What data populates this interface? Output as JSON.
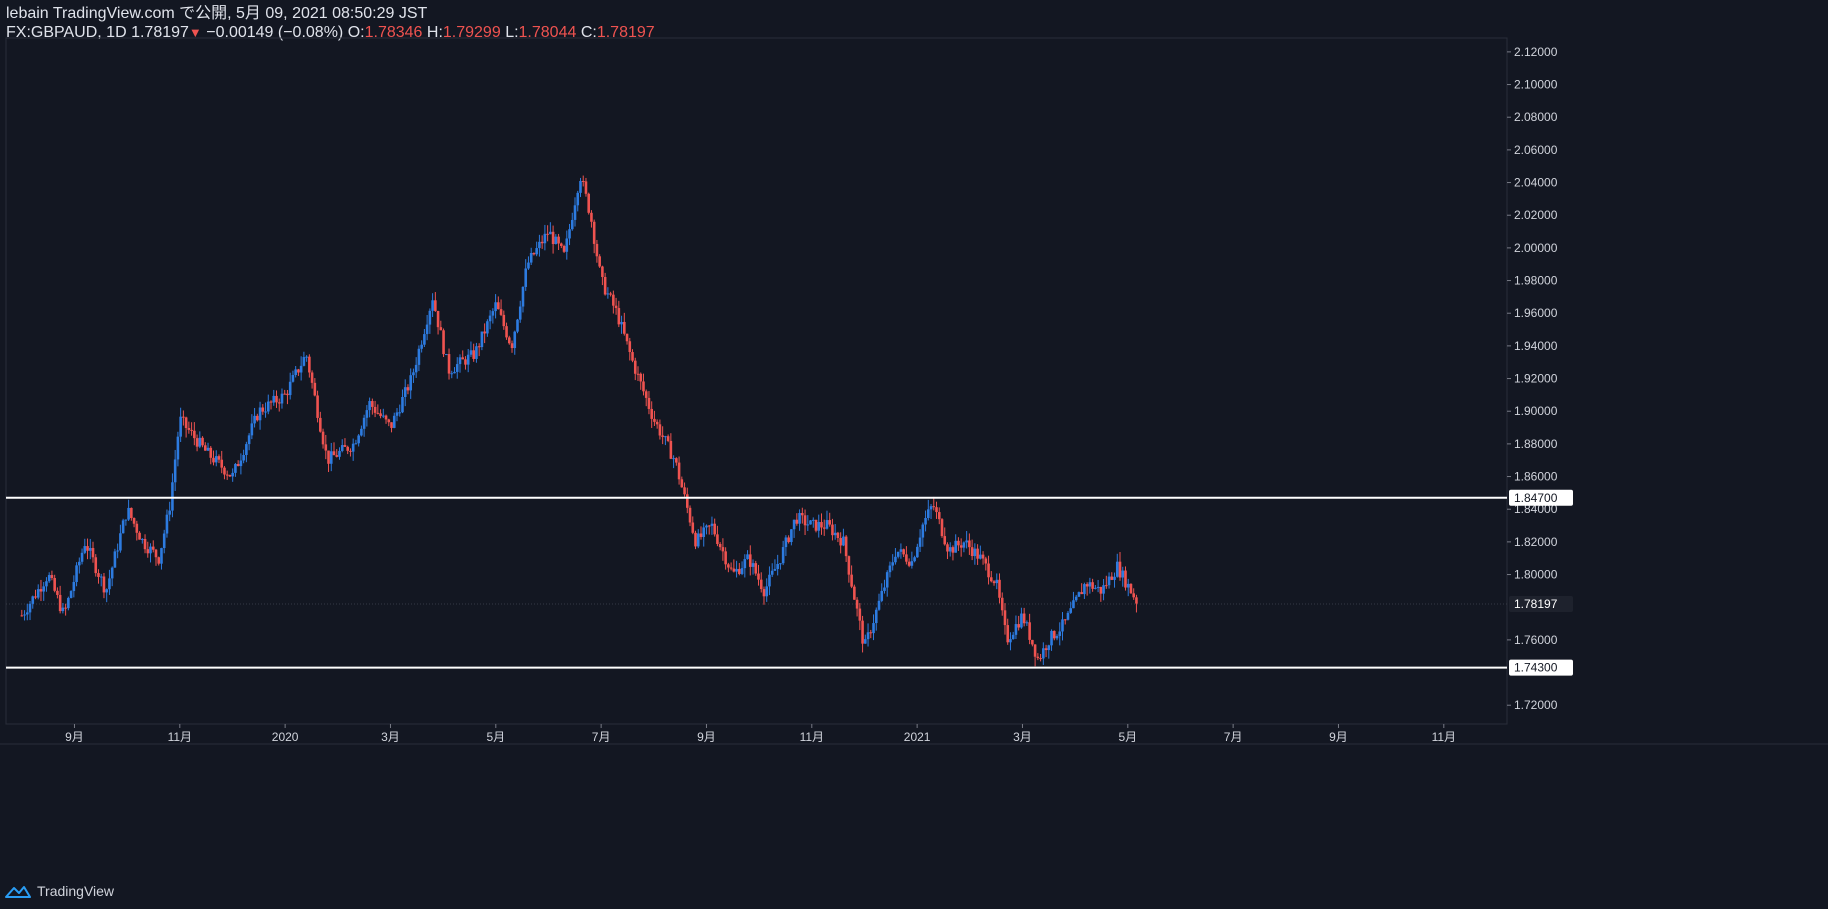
{
  "header": {
    "publisher_line": "lebain TradingView.com で公開, 5月 09, 2021 08:50:29 JST",
    "symbol": "FX:GBPAUD, 1D",
    "last": "1.78197",
    "change": "−0.00149 (−0.08%)",
    "o_label": "O:",
    "o_value": "1.78346",
    "h_label": "H:",
    "h_value": "1.79299",
    "l_label": "L:",
    "l_value": "1.78044",
    "c_label": "C:",
    "c_value": "1.78197"
  },
  "footer": {
    "brand": "TradingView"
  },
  "colors": {
    "up": "#2d7be0",
    "down": "#ef5350",
    "background": "#131722",
    "axis_text": "#d1d4dc",
    "level_line": "#ffffff"
  },
  "chart_data": {
    "type": "candlestick",
    "symbol": "FX:GBPAUD",
    "interval": "1D",
    "ylim": [
      1.7085,
      2.1285
    ],
    "y_ticks": [
      "2.12000",
      "2.10000",
      "2.08000",
      "2.06000",
      "2.04000",
      "2.02000",
      "2.00000",
      "1.98000",
      "1.96000",
      "1.94000",
      "1.92000",
      "1.90000",
      "1.88000",
      "1.86000",
      "1.84000",
      "1.82000",
      "1.80000",
      "1.76000",
      "1.72000"
    ],
    "x_labels": [
      "9月",
      "11月",
      "2020",
      "3月",
      "5月",
      "7月",
      "9月",
      "11月",
      "2021",
      "3月",
      "5月",
      "7月",
      "9月",
      "11月"
    ],
    "x_label_months": [
      1,
      3,
      5,
      7,
      9,
      11,
      13,
      15,
      17,
      19,
      21,
      23,
      25,
      27
    ],
    "time_range_months": [
      -0.3,
      28.2
    ],
    "data_end_month": 21.2,
    "horizontal_levels": [
      {
        "value": 1.847,
        "label": "1.84700"
      },
      {
        "value": 1.743,
        "label": "1.74300"
      }
    ],
    "last_price": {
      "value": 1.78197,
      "label": "1.78197"
    },
    "price_path": [
      [
        0.0,
        1.775
      ],
      [
        0.5,
        1.8
      ],
      [
        0.8,
        1.775
      ],
      [
        1.2,
        1.82
      ],
      [
        1.6,
        1.79
      ],
      [
        2.0,
        1.84
      ],
      [
        2.3,
        1.82
      ],
      [
        2.6,
        1.81
      ],
      [
        2.8,
        1.84
      ],
      [
        3.0,
        1.895
      ],
      [
        3.5,
        1.875
      ],
      [
        4.0,
        1.86
      ],
      [
        4.5,
        1.9
      ],
      [
        5.0,
        1.91
      ],
      [
        5.4,
        1.935
      ],
      [
        5.8,
        1.87
      ],
      [
        6.3,
        1.88
      ],
      [
        6.6,
        1.905
      ],
      [
        7.0,
        1.89
      ],
      [
        7.4,
        1.92
      ],
      [
        7.8,
        1.97
      ],
      [
        8.1,
        1.925
      ],
      [
        8.6,
        1.935
      ],
      [
        9.0,
        1.965
      ],
      [
        9.3,
        1.94
      ],
      [
        9.6,
        1.99
      ],
      [
        10.0,
        2.01
      ],
      [
        10.3,
        1.995
      ],
      [
        10.6,
        2.045
      ],
      [
        10.8,
        2.02
      ],
      [
        11.0,
        1.98
      ],
      [
        11.3,
        1.96
      ],
      [
        11.6,
        1.93
      ],
      [
        12.0,
        1.895
      ],
      [
        12.4,
        1.87
      ],
      [
        12.8,
        1.82
      ],
      [
        13.1,
        1.83
      ],
      [
        13.5,
        1.8
      ],
      [
        13.8,
        1.81
      ],
      [
        14.1,
        1.79
      ],
      [
        14.4,
        1.81
      ],
      [
        14.7,
        1.835
      ],
      [
        15.0,
        1.83
      ],
      [
        15.3,
        1.83
      ],
      [
        15.6,
        1.82
      ],
      [
        16.0,
        1.755
      ],
      [
        16.3,
        1.785
      ],
      [
        16.6,
        1.815
      ],
      [
        16.9,
        1.808
      ],
      [
        17.1,
        1.83
      ],
      [
        17.3,
        1.843
      ],
      [
        17.6,
        1.815
      ],
      [
        17.9,
        1.82
      ],
      [
        18.2,
        1.81
      ],
      [
        18.5,
        1.795
      ],
      [
        18.7,
        1.76
      ],
      [
        19.0,
        1.775
      ],
      [
        19.3,
        1.748
      ],
      [
        19.5,
        1.76
      ],
      [
        19.8,
        1.77
      ],
      [
        20.2,
        1.795
      ],
      [
        20.5,
        1.79
      ],
      [
        20.8,
        1.805
      ],
      [
        21.2,
        1.782
      ]
    ]
  }
}
